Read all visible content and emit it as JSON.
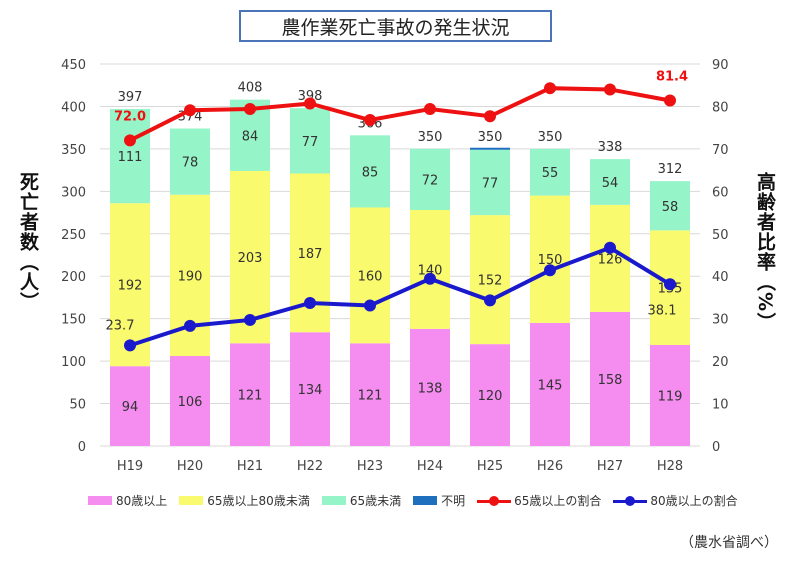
{
  "title": "農作業死亡事故の発生状況",
  "source_note": "（農水省調べ）",
  "chart_data": {
    "type": "bar",
    "stacked": true,
    "categories": [
      "H19",
      "H20",
      "H21",
      "H22",
      "H23",
      "H24",
      "H25",
      "H26",
      "H27",
      "H28"
    ],
    "ylabel_left": "死亡者数（人）",
    "ylabel_right": "高齢者比率（%）",
    "ylim_left": [
      0,
      450
    ],
    "yticks_left": [
      0,
      50,
      100,
      150,
      200,
      250,
      300,
      350,
      400,
      450
    ],
    "ylim_right": [
      0,
      90
    ],
    "yticks_right": [
      0,
      10,
      20,
      30,
      40,
      50,
      60,
      70,
      80,
      90
    ],
    "series": [
      {
        "name": "80歳以上",
        "color": "#f58cf0",
        "values": [
          94,
          106,
          121,
          134,
          121,
          138,
          120,
          145,
          158,
          119
        ]
      },
      {
        "name": "65歳以上80歳未満",
        "color": "#fafa6e",
        "values": [
          192,
          190,
          203,
          187,
          160,
          140,
          152,
          150,
          126,
          135
        ]
      },
      {
        "name": "65歳未満",
        "color": "#96f5c8",
        "values": [
          111,
          78,
          84,
          77,
          85,
          72,
          77,
          55,
          54,
          58
        ]
      },
      {
        "name": "不明",
        "color": "#1f6fbf",
        "values": [
          0,
          0,
          0,
          0,
          0,
          0,
          1,
          0,
          0,
          0
        ]
      }
    ],
    "totals": [
      397,
      374,
      408,
      398,
      366,
      350,
      350,
      350,
      338,
      312
    ],
    "lines": [
      {
        "name": "65歳以上の割合",
        "color": "#ee1111",
        "axis": "right",
        "values": [
          72.0,
          79.1,
          79.4,
          80.7,
          76.8,
          79.4,
          77.7,
          84.3,
          84.0,
          81.4
        ],
        "labeled": {
          "0": "72.0",
          "9": "81.4"
        }
      },
      {
        "name": "80歳以上の割合",
        "color": "#1a1acc",
        "axis": "right",
        "values": [
          23.7,
          28.3,
          29.7,
          33.7,
          33.1,
          39.4,
          34.3,
          41.4,
          46.7,
          38.1
        ],
        "labeled": {
          "0": "23.7",
          "9": "38.1"
        }
      }
    ],
    "grid": true,
    "legend_position": "bottom"
  }
}
